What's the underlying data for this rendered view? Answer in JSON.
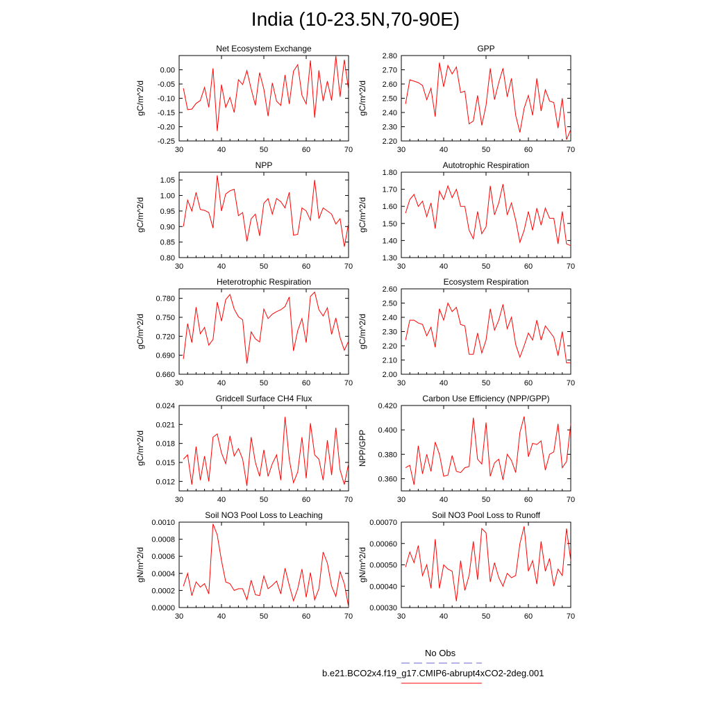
{
  "page_title": "India (10-23.5N,70-90E)",
  "legend": {
    "obs_label": "No Obs",
    "obs_color": "#6666cc",
    "model_label": "b.e21.BCO2x4.f19_g17.CMIP6-abrupt4xCO2-2deg.001",
    "model_color": "#ff0000"
  },
  "chart_data": [
    {
      "type": "line",
      "title": "Net Ecosystem Exchange",
      "xlabel": "",
      "ylabel": "gC/m^2/d",
      "xlim": [
        31,
        70
      ],
      "ylim": [
        -0.25,
        0.05
      ],
      "xticks": [
        "30",
        "40",
        "50",
        "60",
        "70"
      ],
      "yticks": [
        "0.00",
        "-0.05",
        "-0.10",
        "-0.15",
        "-0.20",
        "-0.25"
      ],
      "ytick_values": [
        0.0,
        -0.05,
        -0.1,
        -0.15,
        -0.2,
        -0.25
      ],
      "x": [
        31,
        32,
        33,
        34,
        35,
        36,
        37,
        38,
        39,
        40,
        41,
        42,
        43,
        44,
        45,
        46,
        47,
        48,
        49,
        50,
        51,
        52,
        53,
        54,
        55,
        56,
        57,
        58,
        59,
        60,
        61,
        62,
        63,
        64,
        65,
        66,
        67,
        68,
        69,
        70
      ],
      "series": [
        {
          "color": "#ff0000",
          "values": [
            -0.065,
            -0.14,
            -0.138,
            -0.118,
            -0.108,
            -0.062,
            -0.132,
            0.005,
            -0.215,
            -0.052,
            -0.132,
            -0.097,
            -0.15,
            -0.035,
            -0.052,
            -0.003,
            -0.067,
            -0.125,
            -0.01,
            -0.068,
            -0.163,
            -0.046,
            -0.11,
            -0.125,
            -0.018,
            -0.12,
            -0.005,
            0.018,
            -0.09,
            -0.12,
            0.033,
            -0.168,
            -0.002,
            -0.11,
            -0.04,
            -0.108,
            0.048,
            -0.095,
            0.035,
            -0.07
          ]
        }
      ]
    },
    {
      "type": "line",
      "title": "GPP",
      "xlabel": "",
      "ylabel": "gC/m^2/d",
      "xlim": [
        31,
        70
      ],
      "ylim": [
        2.2,
        2.8
      ],
      "xticks": [
        "30",
        "40",
        "50",
        "60",
        "70"
      ],
      "yticks": [
        "2.80",
        "2.70",
        "2.60",
        "2.50",
        "2.40",
        "2.30",
        "2.20"
      ],
      "ytick_values": [
        2.8,
        2.7,
        2.6,
        2.5,
        2.4,
        2.3,
        2.2
      ],
      "x": [
        31,
        32,
        33,
        34,
        35,
        36,
        37,
        38,
        39,
        40,
        41,
        42,
        43,
        44,
        45,
        46,
        47,
        48,
        49,
        50,
        51,
        52,
        53,
        54,
        55,
        56,
        57,
        58,
        59,
        60,
        61,
        62,
        63,
        64,
        65,
        66,
        67,
        68,
        69,
        70
      ],
      "series": [
        {
          "color": "#ff0000",
          "values": [
            2.46,
            2.63,
            2.62,
            2.61,
            2.59,
            2.49,
            2.57,
            2.37,
            2.75,
            2.58,
            2.73,
            2.67,
            2.72,
            2.54,
            2.55,
            2.32,
            2.34,
            2.52,
            2.31,
            2.45,
            2.71,
            2.49,
            2.61,
            2.71,
            2.51,
            2.64,
            2.38,
            2.26,
            2.43,
            2.52,
            2.38,
            2.64,
            2.41,
            2.56,
            2.48,
            2.47,
            2.29,
            2.5,
            2.21,
            2.28
          ]
        }
      ]
    },
    {
      "type": "line",
      "title": "NPP",
      "xlabel": "",
      "ylabel": "gC/m^2/d",
      "xlim": [
        31,
        70
      ],
      "ylim": [
        0.8,
        1.075
      ],
      "xticks": [
        "30",
        "40",
        "50",
        "60",
        "70"
      ],
      "yticks": [
        "1.05",
        "1.00",
        "0.95",
        "0.90",
        "0.85",
        "0.80"
      ],
      "ytick_values": [
        1.05,
        1.0,
        0.95,
        0.9,
        0.85,
        0.8
      ],
      "x": [
        31,
        32,
        33,
        34,
        35,
        36,
        37,
        38,
        39,
        40,
        41,
        42,
        43,
        44,
        45,
        46,
        47,
        48,
        49,
        50,
        51,
        52,
        53,
        54,
        55,
        56,
        57,
        58,
        59,
        60,
        61,
        62,
        63,
        64,
        65,
        66,
        67,
        68,
        69,
        70
      ],
      "series": [
        {
          "color": "#ff0000",
          "values": [
            0.9,
            0.985,
            0.95,
            1.01,
            0.955,
            0.952,
            0.945,
            0.895,
            1.065,
            0.95,
            1.005,
            1.015,
            1.02,
            0.935,
            0.945,
            0.852,
            0.925,
            0.94,
            0.87,
            0.975,
            0.99,
            0.94,
            0.99,
            0.98,
            0.96,
            1.01,
            0.872,
            0.875,
            0.96,
            0.95,
            0.92,
            1.05,
            0.925,
            0.96,
            0.95,
            0.94,
            0.908,
            0.925,
            0.835,
            0.91
          ]
        }
      ]
    },
    {
      "type": "line",
      "title": "Autotrophic Respiration",
      "xlabel": "",
      "ylabel": "gC/m^2/d",
      "xlim": [
        31,
        70
      ],
      "ylim": [
        1.3,
        1.8
      ],
      "xticks": [
        "30",
        "40",
        "50",
        "60",
        "70"
      ],
      "yticks": [
        "1.80",
        "1.70",
        "1.60",
        "1.50",
        "1.40",
        "1.30"
      ],
      "ytick_values": [
        1.8,
        1.7,
        1.6,
        1.5,
        1.4,
        1.3
      ],
      "x": [
        31,
        32,
        33,
        34,
        35,
        36,
        37,
        38,
        39,
        40,
        41,
        42,
        43,
        44,
        45,
        46,
        47,
        48,
        49,
        50,
        51,
        52,
        53,
        54,
        55,
        56,
        57,
        58,
        59,
        60,
        61,
        62,
        63,
        64,
        65,
        66,
        67,
        68,
        69,
        70
      ],
      "series": [
        {
          "color": "#ff0000",
          "values": [
            1.56,
            1.64,
            1.67,
            1.6,
            1.63,
            1.54,
            1.62,
            1.47,
            1.69,
            1.64,
            1.72,
            1.65,
            1.7,
            1.6,
            1.6,
            1.46,
            1.41,
            1.57,
            1.44,
            1.48,
            1.72,
            1.55,
            1.62,
            1.73,
            1.55,
            1.62,
            1.52,
            1.39,
            1.46,
            1.57,
            1.46,
            1.59,
            1.49,
            1.59,
            1.53,
            1.53,
            1.38,
            1.57,
            1.38,
            1.37
          ]
        }
      ]
    },
    {
      "type": "line",
      "title": "Heterotrophic Respiration",
      "xlabel": "",
      "ylabel": "gC/m^2/d",
      "xlim": [
        31,
        70
      ],
      "ylim": [
        0.66,
        0.795
      ],
      "xticks": [
        "30",
        "40",
        "50",
        "60",
        "70"
      ],
      "yticks": [
        "0.780",
        "0.750",
        "0.720",
        "0.690",
        "0.660"
      ],
      "ytick_values": [
        0.78,
        0.75,
        0.72,
        0.69,
        0.66
      ],
      "x": [
        31,
        32,
        33,
        34,
        35,
        36,
        37,
        38,
        39,
        40,
        41,
        42,
        43,
        44,
        45,
        46,
        47,
        48,
        49,
        50,
        51,
        52,
        53,
        54,
        55,
        56,
        57,
        58,
        59,
        60,
        61,
        62,
        63,
        64,
        65,
        66,
        67,
        68,
        69,
        70
      ],
      "series": [
        {
          "color": "#ff0000",
          "values": [
            0.684,
            0.74,
            0.71,
            0.766,
            0.724,
            0.734,
            0.706,
            0.715,
            0.774,
            0.744,
            0.778,
            0.786,
            0.763,
            0.751,
            0.746,
            0.677,
            0.727,
            0.716,
            0.711,
            0.763,
            0.748,
            0.755,
            0.759,
            0.762,
            0.767,
            0.782,
            0.697,
            0.729,
            0.748,
            0.71,
            0.783,
            0.79,
            0.762,
            0.752,
            0.765,
            0.723,
            0.749,
            0.718,
            0.698,
            0.712
          ]
        }
      ]
    },
    {
      "type": "line",
      "title": "Ecosystem Respiration",
      "xlabel": "",
      "ylabel": "gC/m^2/d",
      "xlim": [
        31,
        70
      ],
      "ylim": [
        2.0,
        2.6
      ],
      "xticks": [
        "30",
        "40",
        "50",
        "60",
        "70"
      ],
      "yticks": [
        "2.60",
        "2.50",
        "2.40",
        "2.30",
        "2.20",
        "2.10",
        "2.00"
      ],
      "ytick_values": [
        2.6,
        2.5,
        2.4,
        2.3,
        2.2,
        2.1,
        2.0
      ],
      "x": [
        31,
        32,
        33,
        34,
        35,
        36,
        37,
        38,
        39,
        40,
        41,
        42,
        43,
        44,
        45,
        46,
        47,
        48,
        49,
        50,
        51,
        52,
        53,
        54,
        55,
        56,
        57,
        58,
        59,
        60,
        61,
        62,
        63,
        64,
        65,
        66,
        67,
        68,
        69,
        70
      ],
      "series": [
        {
          "color": "#ff0000",
          "values": [
            2.24,
            2.38,
            2.38,
            2.36,
            2.35,
            2.27,
            2.33,
            2.19,
            2.46,
            2.38,
            2.5,
            2.44,
            2.47,
            2.35,
            2.34,
            2.14,
            2.14,
            2.29,
            2.15,
            2.24,
            2.46,
            2.31,
            2.38,
            2.49,
            2.32,
            2.4,
            2.21,
            2.12,
            2.2,
            2.29,
            2.24,
            2.38,
            2.24,
            2.34,
            2.3,
            2.26,
            2.13,
            2.3,
            2.08,
            2.08
          ]
        }
      ]
    },
    {
      "type": "line",
      "title": "Gridcell Surface CH4 Flux",
      "xlabel": "",
      "ylabel": "gC/m^2/d",
      "xlim": [
        31,
        70
      ],
      "ylim": [
        0.0105,
        0.024
      ],
      "xticks": [
        "30",
        "40",
        "50",
        "60",
        "70"
      ],
      "yticks": [
        "0.024",
        "0.021",
        "0.018",
        "0.015",
        "0.012"
      ],
      "ytick_values": [
        0.024,
        0.021,
        0.018,
        0.015,
        0.012
      ],
      "x": [
        31,
        32,
        33,
        34,
        35,
        36,
        37,
        38,
        39,
        40,
        41,
        42,
        43,
        44,
        45,
        46,
        47,
        48,
        49,
        50,
        51,
        52,
        53,
        54,
        55,
        56,
        57,
        58,
        59,
        60,
        61,
        62,
        63,
        64,
        65,
        66,
        67,
        68,
        69,
        70
      ],
      "series": [
        {
          "color": "#ff0000",
          "values": [
            0.0155,
            0.0162,
            0.0115,
            0.0175,
            0.0122,
            0.016,
            0.012,
            0.019,
            0.0195,
            0.0165,
            0.0148,
            0.0192,
            0.016,
            0.0172,
            0.0155,
            0.0113,
            0.019,
            0.015,
            0.0128,
            0.017,
            0.0128,
            0.0148,
            0.0162,
            0.0122,
            0.0222,
            0.0155,
            0.0118,
            0.0135,
            0.019,
            0.0125,
            0.0212,
            0.0162,
            0.0155,
            0.0122,
            0.0185,
            0.013,
            0.0205,
            0.0138,
            0.0115,
            0.0148
          ]
        }
      ]
    },
    {
      "type": "line",
      "title": "Carbon Use Efficiency (NPP/GPP)",
      "xlabel": "",
      "ylabel": "NPP/GPP",
      "xlim": [
        31,
        70
      ],
      "ylim": [
        0.35,
        0.42
      ],
      "xticks": [
        "30",
        "40",
        "50",
        "60",
        "70"
      ],
      "yticks": [
        "0.420",
        "0.400",
        "0.380",
        "0.360"
      ],
      "ytick_values": [
        0.42,
        0.4,
        0.38,
        0.36
      ],
      "x": [
        31,
        32,
        33,
        34,
        35,
        36,
        37,
        38,
        39,
        40,
        41,
        42,
        43,
        44,
        45,
        46,
        47,
        48,
        49,
        50,
        51,
        52,
        53,
        54,
        55,
        56,
        57,
        58,
        59,
        60,
        61,
        62,
        63,
        64,
        65,
        66,
        67,
        68,
        69,
        70
      ],
      "series": [
        {
          "color": "#ff0000",
          "values": [
            0.369,
            0.371,
            0.355,
            0.387,
            0.364,
            0.38,
            0.366,
            0.39,
            0.38,
            0.362,
            0.363,
            0.379,
            0.366,
            0.365,
            0.369,
            0.37,
            0.41,
            0.376,
            0.372,
            0.406,
            0.362,
            0.373,
            0.376,
            0.359,
            0.38,
            0.375,
            0.365,
            0.398,
            0.411,
            0.378,
            0.389,
            0.388,
            0.391,
            0.367,
            0.38,
            0.382,
            0.405,
            0.369,
            0.374,
            0.405
          ]
        }
      ]
    },
    {
      "type": "line",
      "title": "Soil NO3 Pool Loss to Leaching",
      "xlabel": "",
      "ylabel": "gN/m^2/d",
      "xlim": [
        31,
        70
      ],
      "ylim": [
        0.0,
        0.001
      ],
      "xticks": [
        "30",
        "40",
        "50",
        "60",
        "70"
      ],
      "yticks": [
        "0.0010",
        "0.0008",
        "0.0006",
        "0.0004",
        "0.0002",
        "0.0000"
      ],
      "ytick_values": [
        0.001,
        0.0008,
        0.0006,
        0.0004,
        0.0002,
        0.0
      ],
      "x": [
        31,
        32,
        33,
        34,
        35,
        36,
        37,
        38,
        39,
        40,
        41,
        42,
        43,
        44,
        45,
        46,
        47,
        48,
        49,
        50,
        51,
        52,
        53,
        54,
        55,
        56,
        57,
        58,
        59,
        60,
        61,
        62,
        63,
        64,
        65,
        66,
        67,
        68,
        69,
        70
      ],
      "series": [
        {
          "color": "#ff0000",
          "values": [
            0.00025,
            0.0004,
            0.00014,
            0.0003,
            0.00024,
            0.00028,
            0.00016,
            0.00098,
            0.00085,
            0.00055,
            0.0003,
            0.00028,
            0.0002,
            0.00022,
            0.00022,
            9e-05,
            0.00032,
            0.00015,
            0.00014,
            0.00037,
            0.00022,
            0.00026,
            0.00031,
            0.00016,
            0.00046,
            0.00026,
            8e-05,
            0.00022,
            0.00045,
            0.00012,
            0.00041,
            9e-05,
            0.00022,
            0.00065,
            0.00052,
            0.00025,
            0.00013,
            0.00042,
            0.00028,
            1e-05
          ]
        }
      ]
    },
    {
      "type": "line",
      "title": "Soil NO3 Pool Loss to Runoff",
      "xlabel": "",
      "ylabel": "gN/m^2/d",
      "xlim": [
        31,
        70
      ],
      "ylim": [
        0.0003,
        0.0007
      ],
      "xticks": [
        "30",
        "40",
        "50",
        "60",
        "70"
      ],
      "yticks": [
        "0.00070",
        "0.00060",
        "0.00050",
        "0.00040",
        "0.00030"
      ],
      "ytick_values": [
        0.0007,
        0.0006,
        0.0005,
        0.0004,
        0.0003
      ],
      "x": [
        31,
        32,
        33,
        34,
        35,
        36,
        37,
        38,
        39,
        40,
        41,
        42,
        43,
        44,
        45,
        46,
        47,
        48,
        49,
        50,
        51,
        52,
        53,
        54,
        55,
        56,
        57,
        58,
        59,
        60,
        61,
        62,
        63,
        64,
        65,
        66,
        67,
        68,
        69,
        70
      ],
      "series": [
        {
          "color": "#ff0000",
          "values": [
            0.00049,
            0.00056,
            0.00051,
            0.00059,
            0.00045,
            0.0005,
            0.00039,
            0.00062,
            0.00039,
            0.0005,
            0.00048,
            0.00047,
            0.00033,
            0.00052,
            0.00038,
            0.00045,
            0.00061,
            0.00043,
            0.00067,
            0.00065,
            0.00042,
            0.00051,
            0.00044,
            0.0004,
            0.00046,
            0.00044,
            0.00045,
            0.0006,
            0.00068,
            0.00047,
            0.00052,
            0.00041,
            0.00061,
            0.00047,
            0.00053,
            0.0004,
            0.00048,
            0.00045,
            0.00067,
            0.00052
          ]
        }
      ]
    }
  ]
}
